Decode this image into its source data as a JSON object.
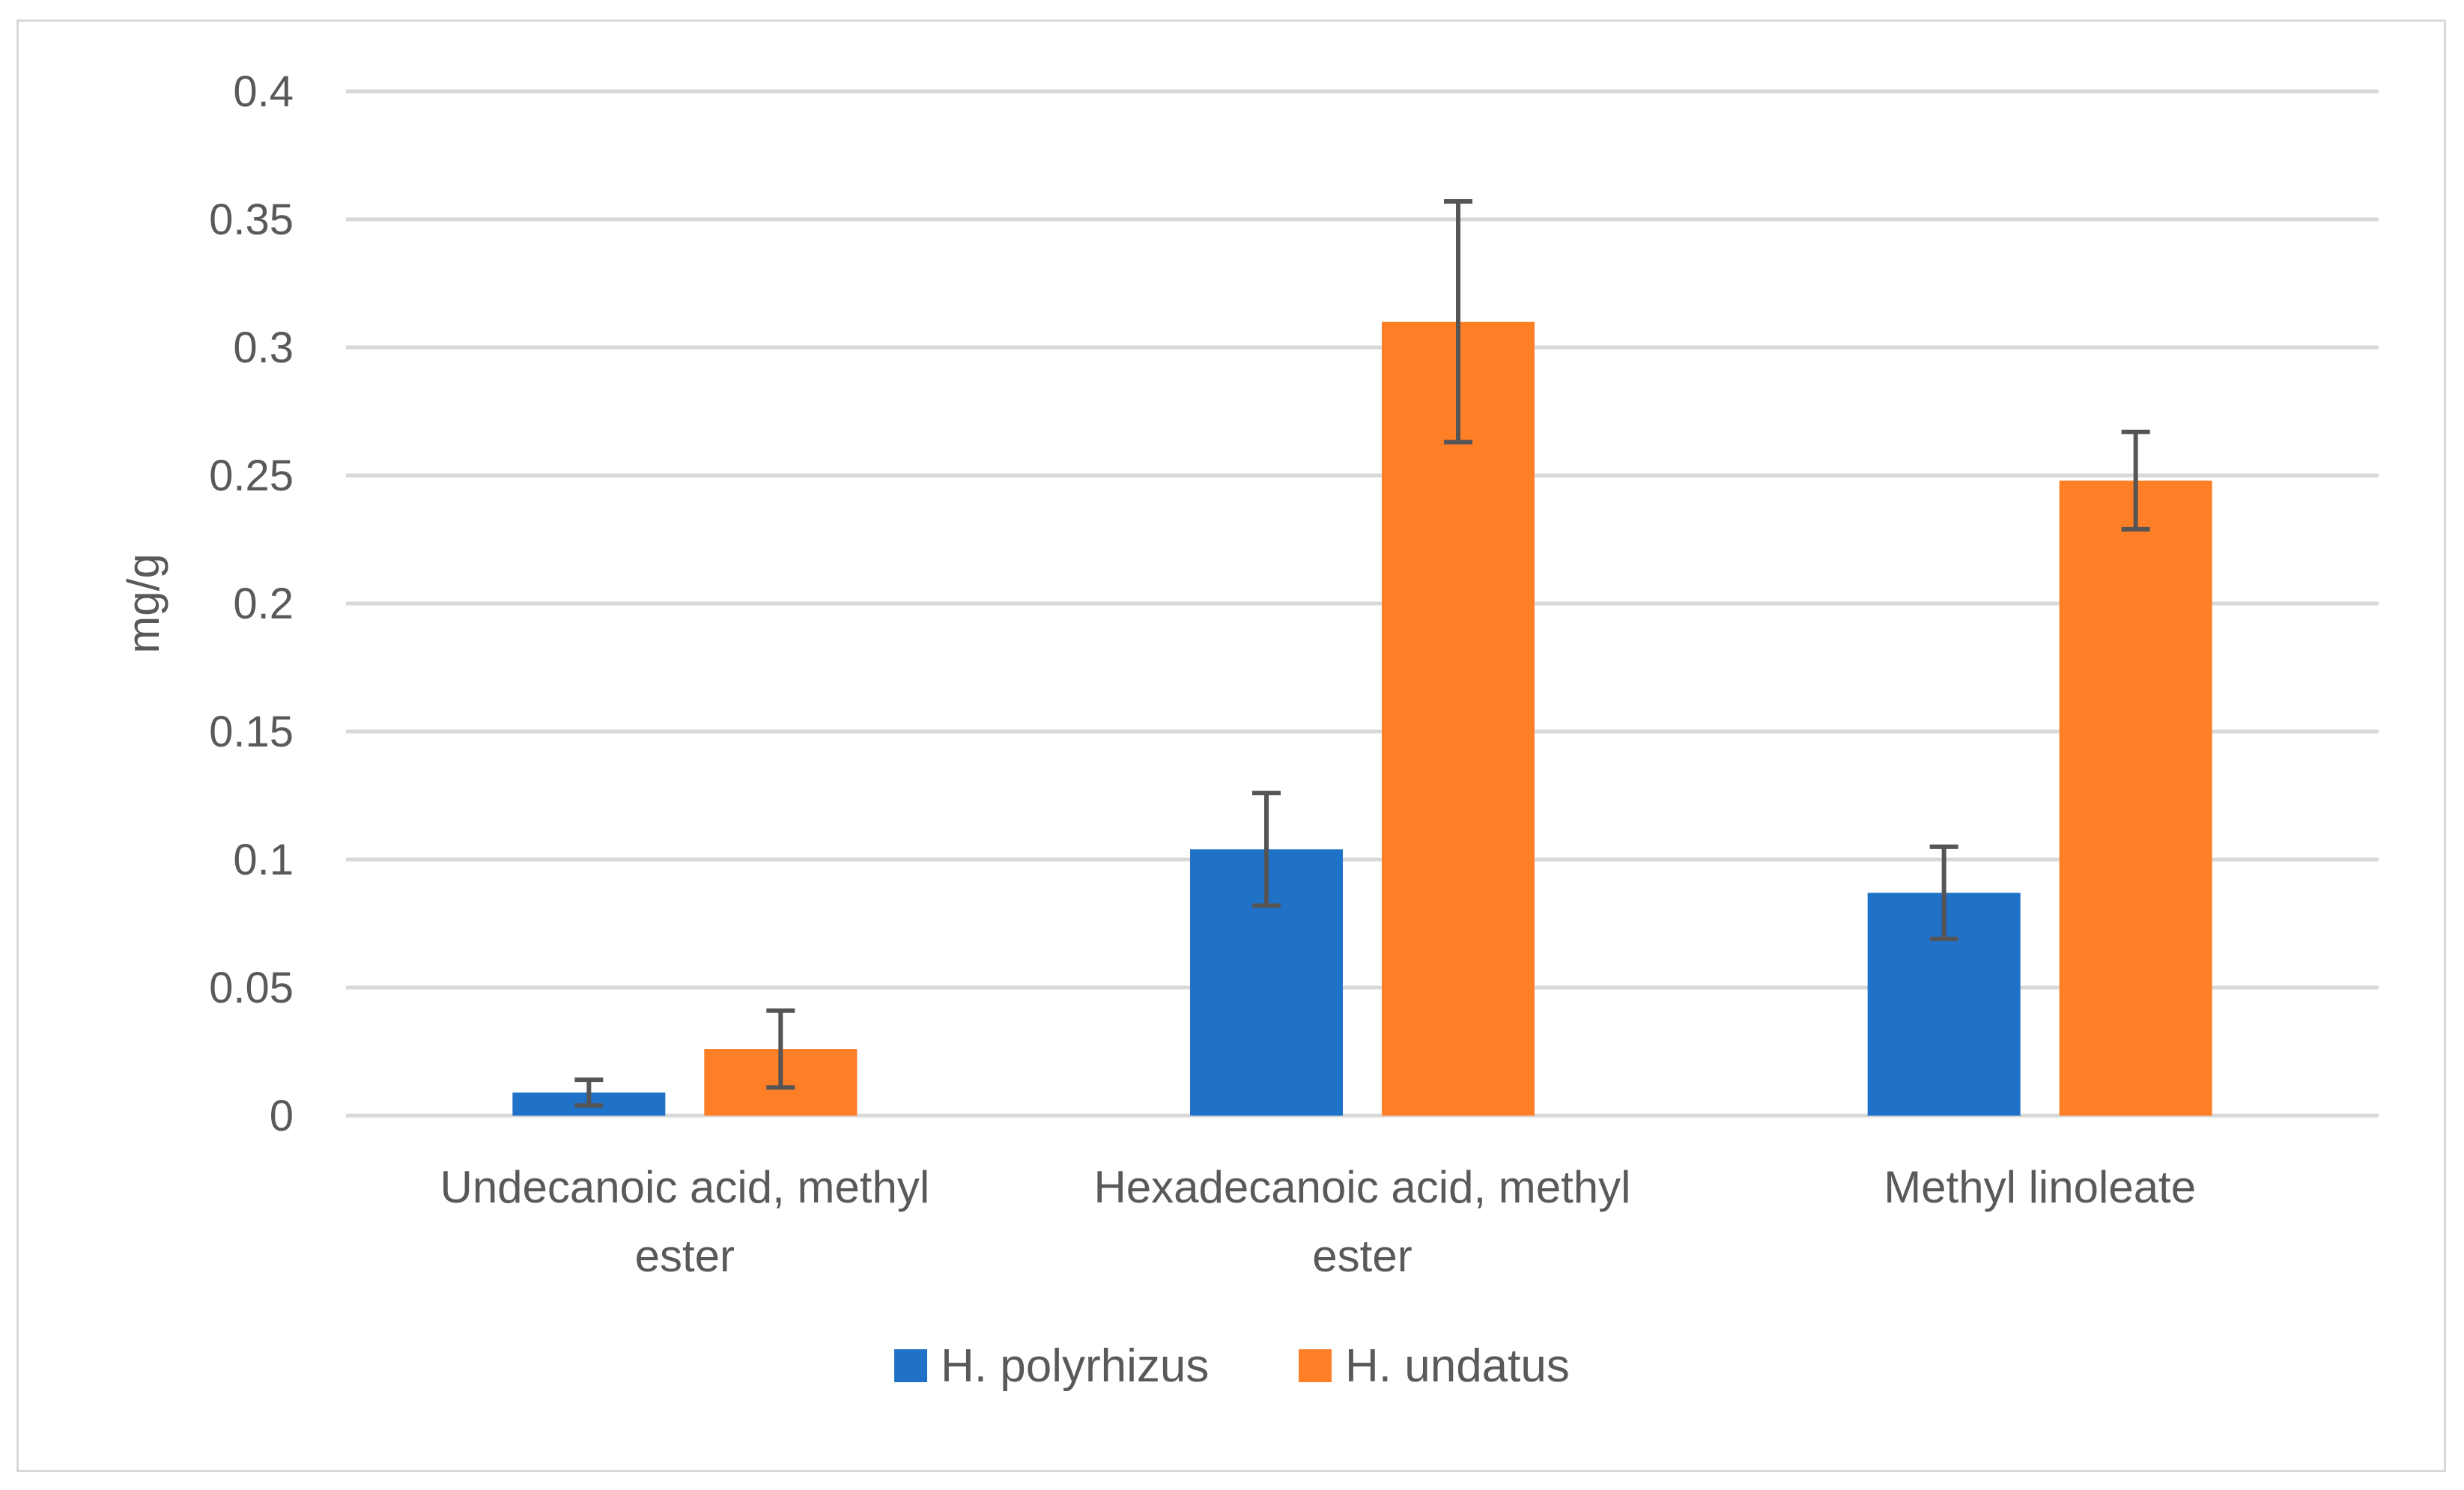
{
  "chart_data": {
    "type": "bar",
    "ylabel": "mg/g",
    "ylim": [
      0,
      0.4
    ],
    "y_ticks": [
      "0",
      "0.05",
      "0.1",
      "0.15",
      "0.2",
      "0.25",
      "0.3",
      "0.35",
      "0.4"
    ],
    "y_tick_values": [
      0,
      0.05,
      0.1,
      0.15,
      0.2,
      0.25,
      0.3,
      0.35,
      0.4
    ],
    "categories": [
      [
        "Undecanoic acid, methyl",
        "ester"
      ],
      [
        "Hexadecanoic acid, methyl",
        "ester"
      ],
      [
        "Methyl linoleate"
      ]
    ],
    "series": [
      {
        "name": "H. polyrhizus",
        "color": "#1F72C8",
        "values": [
          0.009,
          0.104,
          0.087
        ],
        "errors": [
          0.005,
          0.022,
          0.018
        ]
      },
      {
        "name": "H. undatus",
        "color": "#FF7F27",
        "values": [
          0.026,
          0.31,
          0.248
        ],
        "errors": [
          0.015,
          0.047,
          0.019
        ]
      }
    ],
    "grid": true,
    "legend_position": "bottom",
    "gridline_color": "#d9d9d9",
    "errorbar_color": "#555555"
  }
}
